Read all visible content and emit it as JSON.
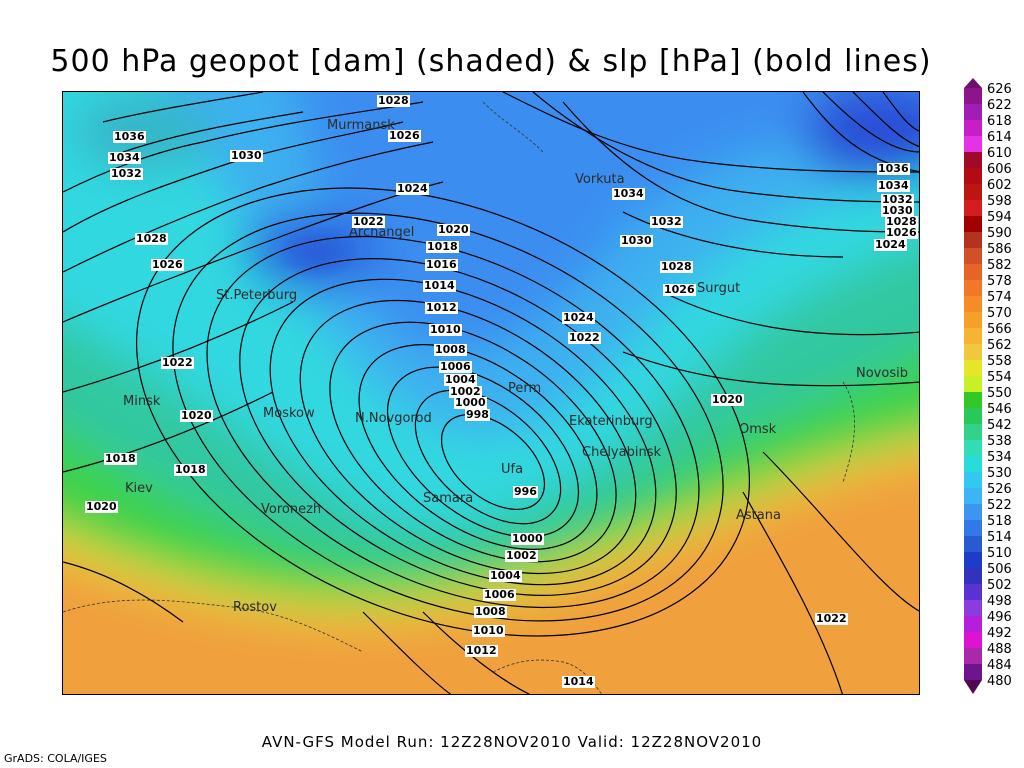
{
  "title": "500 hPa geopot [dam] (shaded) & slp [hPa] (bold lines)",
  "footer": "AVN-GFS Model Run: 12Z28NOV2010 Valid: 12Z28NOV2010",
  "credit": "GrADS: COLA/IGES",
  "cities": [
    "Murmansk",
    "Vorkuta",
    "Archangel",
    "St.Peterburg",
    "Surgut",
    "Perm",
    "Novosib",
    "Minsk",
    "Moskow",
    "N.Novgorod",
    "Ekaterinburg",
    "Omsk",
    "Ufa",
    "Chelyabinsk",
    "Kiev",
    "Samara",
    "Voronezh",
    "Astana",
    "Rostov"
  ],
  "isobar_labels": [
    "1028",
    "1026",
    "1036",
    "1034",
    "1032",
    "1030",
    "1024",
    "1022",
    "1020",
    "1018",
    "1016",
    "1014",
    "1012",
    "1010",
    "1008",
    "1006",
    "1004",
    "1002",
    "1000",
    "998",
    "996",
    "1000",
    "1002",
    "1004",
    "1006",
    "1008",
    "1010",
    "1012",
    "1014",
    "1034",
    "1032",
    "1030",
    "1028",
    "1026",
    "1024",
    "1022",
    "1020",
    "1022",
    "1020",
    "1018",
    "1018",
    "1020",
    "1022",
    "1036",
    "1034",
    "1032",
    "1030",
    "1028",
    "1026",
    "1024",
    "1026",
    "1028"
  ],
  "colorbar": {
    "labels": [
      "626",
      "622",
      "618",
      "614",
      "610",
      "606",
      "602",
      "598",
      "594",
      "590",
      "586",
      "582",
      "578",
      "574",
      "570",
      "566",
      "562",
      "558",
      "554",
      "550",
      "546",
      "542",
      "538",
      "534",
      "530",
      "526",
      "522",
      "518",
      "514",
      "510",
      "506",
      "502",
      "498",
      "496",
      "492",
      "488",
      "484",
      "480"
    ],
    "colors": [
      "#6e0f6e",
      "#8c148c",
      "#a01eb4",
      "#c81ec8",
      "#e632e6",
      "#a00a28",
      "#b40a14",
      "#be1414",
      "#d21e1e",
      "#a00000",
      "#b4321e",
      "#d25028",
      "#e66428",
      "#f07828",
      "#f58c28",
      "#f5a028",
      "#f5b432",
      "#f0c83c",
      "#e6e628",
      "#c8f028",
      "#32c828",
      "#28c85a",
      "#32d28c",
      "#32dcb4",
      "#28dcdc",
      "#32c8f0",
      "#3cb4f5",
      "#3c96f0",
      "#3278e6",
      "#285ad2",
      "#1e3cc8",
      "#3232be",
      "#5a32d2",
      "#8c3cdc",
      "#b41edc",
      "#dc14d2",
      "#aa28aa",
      "#6e148c",
      "#500a50"
    ]
  }
}
